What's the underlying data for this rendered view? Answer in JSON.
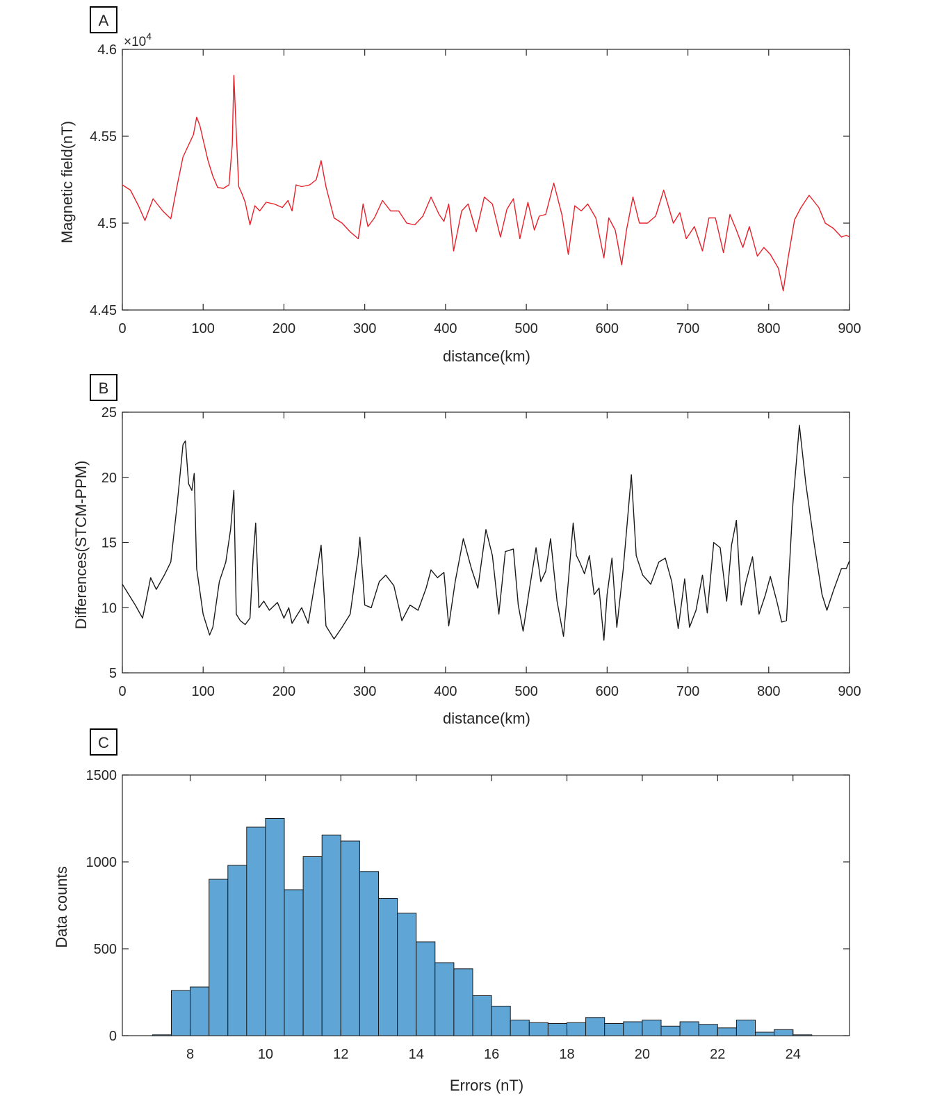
{
  "chart_data": [
    {
      "panel_label": "A",
      "type": "line",
      "xlabel": "distance(km)",
      "ylabel": "Magnetic field(nT)",
      "y_exponent": "×10",
      "y_exponent_power": "4",
      "xlim": [
        0,
        900
      ],
      "ylim": [
        4.45,
        4.6
      ],
      "xticks": [
        0,
        100,
        200,
        300,
        400,
        500,
        600,
        700,
        800,
        900
      ],
      "yticks": [
        4.45,
        4.5,
        4.55,
        4.6
      ],
      "ytick_labels": [
        "4.45",
        "4.5",
        "4.55",
        "4.6"
      ],
      "line_color": "#e8202a",
      "x": [
        0,
        10,
        20,
        28,
        38,
        50,
        60,
        68,
        75,
        82,
        88,
        92,
        96,
        100,
        106,
        112,
        118,
        125,
        132,
        136,
        138,
        141,
        144,
        148,
        152,
        158,
        164,
        170,
        178,
        188,
        198,
        205,
        210,
        215,
        222,
        232,
        240,
        246,
        252,
        262,
        272,
        282,
        292,
        298,
        304,
        312,
        322,
        332,
        342,
        352,
        362,
        372,
        382,
        392,
        398,
        404,
        410,
        420,
        428,
        438,
        448,
        458,
        468,
        476,
        484,
        492,
        502,
        510,
        516,
        524,
        534,
        544,
        552,
        560,
        568,
        576,
        586,
        596,
        602,
        610,
        618,
        624,
        632,
        640,
        650,
        660,
        670,
        682,
        690,
        698,
        708,
        718,
        726,
        734,
        744,
        752,
        760,
        768,
        776,
        786,
        794,
        802,
        812,
        818,
        824,
        832,
        840,
        850,
        862,
        870,
        880,
        890,
        896,
        900
      ],
      "y": [
        4.522,
        4.519,
        4.51,
        4.5015,
        4.514,
        4.507,
        4.5025,
        4.522,
        4.538,
        4.545,
        4.551,
        4.561,
        4.556,
        4.548,
        4.536,
        4.527,
        4.5205,
        4.52,
        4.522,
        4.545,
        4.585,
        4.552,
        4.521,
        4.517,
        4.512,
        4.499,
        4.51,
        4.507,
        4.512,
        4.511,
        4.509,
        4.513,
        4.507,
        4.522,
        4.521,
        4.522,
        4.525,
        4.536,
        4.521,
        4.503,
        4.5,
        4.495,
        4.491,
        4.511,
        4.498,
        4.503,
        4.513,
        4.507,
        4.507,
        4.5,
        4.499,
        4.504,
        4.515,
        4.505,
        4.501,
        4.511,
        4.484,
        4.507,
        4.511,
        4.495,
        4.515,
        4.511,
        4.492,
        4.508,
        4.514,
        4.491,
        4.512,
        4.496,
        4.504,
        4.505,
        4.523,
        4.505,
        4.482,
        4.51,
        4.507,
        4.511,
        4.503,
        4.48,
        4.503,
        4.496,
        4.476,
        4.496,
        4.515,
        4.5,
        4.5,
        4.504,
        4.519,
        4.5,
        4.506,
        4.491,
        4.498,
        4.484,
        4.503,
        4.503,
        4.483,
        4.505,
        4.496,
        4.486,
        4.498,
        4.481,
        4.486,
        4.482,
        4.474,
        4.461,
        4.48,
        4.502,
        4.509,
        4.516,
        4.509,
        4.5,
        4.497,
        4.492,
        4.493,
        4.492
      ]
    },
    {
      "panel_label": "B",
      "type": "line",
      "xlabel": "distance(km)",
      "ylabel": "Differences(STCM-PPM)",
      "xlim": [
        0,
        900
      ],
      "ylim": [
        5,
        25
      ],
      "xticks": [
        0,
        100,
        200,
        300,
        400,
        500,
        600,
        700,
        800,
        900
      ],
      "yticks": [
        5,
        10,
        15,
        20,
        25
      ],
      "ytick_labels": [
        "5",
        "10",
        "15",
        "20",
        "25"
      ],
      "line_color": "#1a1a1a",
      "x": [
        0,
        8,
        16,
        25,
        35,
        42,
        52,
        60,
        68,
        75,
        78,
        82,
        86,
        89,
        92,
        100,
        108,
        112,
        120,
        128,
        134,
        138,
        141,
        146,
        152,
        158,
        162,
        165,
        169,
        175,
        182,
        192,
        200,
        206,
        210,
        216,
        222,
        230,
        240,
        246,
        252,
        262,
        272,
        282,
        292,
        294,
        300,
        308,
        318,
        326,
        336,
        346,
        356,
        366,
        376,
        382,
        390,
        398,
        404,
        412,
        422,
        432,
        440,
        450,
        458,
        466,
        474,
        484,
        490,
        496,
        504,
        512,
        518,
        524,
        530,
        538,
        546,
        552,
        558,
        562,
        566,
        572,
        578,
        584,
        590,
        596,
        600,
        606,
        612,
        620,
        630,
        636,
        644,
        654,
        664,
        672,
        680,
        688,
        696,
        702,
        710,
        718,
        724,
        732,
        740,
        748,
        754,
        760,
        766,
        772,
        780,
        788,
        796,
        802,
        810,
        816,
        822,
        830,
        838,
        846,
        856,
        866,
        872,
        880,
        890,
        896,
        900
      ],
      "y": [
        11.8,
        11.0,
        10.2,
        9.2,
        12.3,
        11.4,
        12.5,
        13.5,
        18.0,
        22.5,
        22.8,
        19.5,
        19.0,
        20.3,
        13.0,
        9.5,
        7.9,
        8.5,
        12.0,
        13.5,
        16.0,
        19.0,
        9.5,
        9.0,
        8.7,
        9.2,
        14.0,
        16.5,
        10.0,
        10.5,
        9.8,
        10.4,
        9.2,
        10.0,
        8.8,
        9.4,
        10.0,
        8.8,
        12.5,
        14.8,
        8.6,
        7.6,
        8.5,
        9.5,
        14.0,
        15.4,
        10.2,
        10.0,
        12.0,
        12.5,
        11.7,
        9.0,
        10.2,
        9.8,
        11.5,
        12.9,
        12.3,
        12.7,
        8.6,
        12.0,
        15.3,
        13.0,
        11.5,
        16.0,
        14.0,
        9.5,
        14.3,
        14.5,
        10.2,
        8.2,
        11.5,
        14.6,
        12.0,
        12.8,
        15.3,
        10.5,
        7.8,
        12.0,
        16.5,
        14.0,
        13.5,
        12.6,
        14.0,
        11.0,
        11.5,
        7.5,
        11.0,
        13.8,
        8.5,
        13.0,
        20.2,
        14.0,
        12.5,
        11.8,
        13.5,
        13.8,
        12.0,
        8.4,
        12.2,
        8.5,
        9.8,
        12.5,
        9.6,
        15.0,
        14.6,
        10.5,
        14.8,
        16.7,
        10.2,
        12.0,
        13.9,
        9.5,
        11.0,
        12.4,
        10.5,
        8.9,
        9.0,
        18.0,
        24.0,
        19.5,
        15.0,
        11.0,
        9.8,
        11.3,
        13.0,
        13.0,
        13.6
      ]
    },
    {
      "panel_label": "C",
      "type": "bar",
      "xlabel": "Errors (nT)",
      "ylabel": "Data counts",
      "xlim": [
        6.2,
        25.5
      ],
      "ylim": [
        0,
        1500
      ],
      "xticks": [
        8,
        10,
        12,
        14,
        16,
        18,
        20,
        22,
        24
      ],
      "yticks": [
        0,
        500,
        1000,
        1500
      ],
      "ytick_labels": [
        "0",
        "500",
        "1000",
        "1500"
      ],
      "bar_color": "#5fa6d6",
      "bin_edges": [
        7.0,
        7.5,
        8.0,
        8.5,
        9.0,
        9.5,
        10.0,
        10.5,
        11.0,
        11.5,
        12.0,
        12.5,
        13.0,
        13.5,
        14.0,
        14.5,
        15.0,
        15.5,
        16.0,
        16.5,
        17.0,
        17.5,
        18.0,
        18.5,
        19.0,
        19.5,
        20.0,
        20.5,
        21.0,
        21.5,
        22.0,
        22.5,
        23.0,
        23.5,
        24.0,
        24.5
      ],
      "values": [
        5,
        260,
        280,
        900,
        980,
        1200,
        1250,
        840,
        1030,
        1155,
        1120,
        945,
        790,
        705,
        540,
        420,
        385,
        230,
        170,
        90,
        75,
        70,
        75,
        105,
        70,
        80,
        90,
        55,
        80,
        65,
        45,
        90,
        20,
        35,
        5
      ]
    }
  ]
}
